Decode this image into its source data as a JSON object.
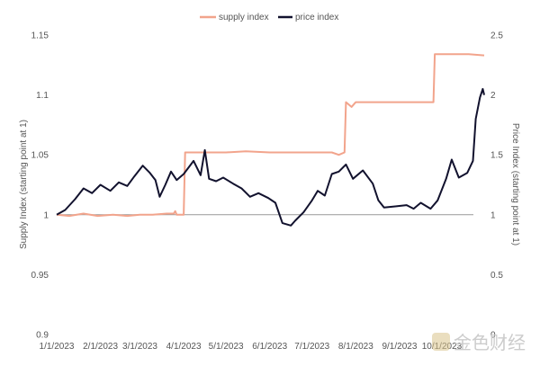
{
  "chart_data": {
    "type": "line",
    "title": "",
    "legend": {
      "placement": "top-center",
      "items": [
        {
          "label": "supply index",
          "color": "#F2A48C"
        },
        {
          "label": "price index",
          "color": "#12122E"
        }
      ]
    },
    "x_axis": {
      "tick_labels": [
        "1/1/2023",
        "2/1/2023",
        "3/1/2023",
        "4/1/2023",
        "5/1/2023",
        "6/1/2023",
        "7/1/2023",
        "8/1/2023",
        "9/1/2023",
        "10/1/2023"
      ],
      "range": [
        "2023-01-01",
        "2023-10-31"
      ]
    },
    "y_left": {
      "label": "Supply Index (starting point at 1)",
      "range": [
        0.9,
        1.15
      ],
      "tick_labels": [
        "0.9",
        "0.95",
        "1",
        "1.05",
        "1.1",
        "1.15"
      ],
      "tick_values": [
        0.9,
        0.95,
        1.0,
        1.05,
        1.1,
        1.15
      ]
    },
    "y_right": {
      "label": "Price Index (starting point at 1)",
      "range": [
        0,
        2.5
      ],
      "tick_labels": [
        "0",
        "0.5",
        "1",
        "1.5",
        "2",
        "2.5"
      ],
      "tick_values": [
        0,
        0.5,
        1.0,
        1.5,
        2.0,
        2.5
      ]
    },
    "reference_line": {
      "axis": "left",
      "value": 1.0,
      "color": "#999999"
    },
    "series": [
      {
        "name": "supply index",
        "axis": "left",
        "color": "#F2A48C",
        "points": [
          [
            "2023-01-01",
            1.0
          ],
          [
            "2023-01-10",
            0.999
          ],
          [
            "2023-01-20",
            1.001
          ],
          [
            "2023-01-30",
            0.999
          ],
          [
            "2023-02-10",
            1.0
          ],
          [
            "2023-02-20",
            0.999
          ],
          [
            "2023-03-01",
            1.0
          ],
          [
            "2023-03-10",
            1.0
          ],
          [
            "2023-03-20",
            1.001
          ],
          [
            "2023-03-25",
            1.001
          ],
          [
            "2023-03-26",
            1.003
          ],
          [
            "2023-03-27",
            1.0
          ],
          [
            "2023-04-01",
            1.0
          ],
          [
            "2023-04-02",
            1.052
          ],
          [
            "2023-04-15",
            1.052
          ],
          [
            "2023-05-01",
            1.052
          ],
          [
            "2023-05-15",
            1.053
          ],
          [
            "2023-06-01",
            1.052
          ],
          [
            "2023-06-15",
            1.052
          ],
          [
            "2023-07-01",
            1.052
          ],
          [
            "2023-07-15",
            1.052
          ],
          [
            "2023-07-20",
            1.05
          ],
          [
            "2023-07-24",
            1.052
          ],
          [
            "2023-07-25",
            1.094
          ],
          [
            "2023-07-29",
            1.09
          ],
          [
            "2023-08-01",
            1.094
          ],
          [
            "2023-08-15",
            1.094
          ],
          [
            "2023-09-01",
            1.094
          ],
          [
            "2023-09-15",
            1.094
          ],
          [
            "2023-09-25",
            1.094
          ],
          [
            "2023-09-26",
            1.134
          ],
          [
            "2023-10-10",
            1.134
          ],
          [
            "2023-10-20",
            1.134
          ],
          [
            "2023-10-31",
            1.133
          ]
        ]
      },
      {
        "name": "price index",
        "axis": "right",
        "color": "#12122E",
        "points": [
          [
            "2023-01-01",
            1.0
          ],
          [
            "2023-01-07",
            1.04
          ],
          [
            "2023-01-14",
            1.13
          ],
          [
            "2023-01-20",
            1.22
          ],
          [
            "2023-01-26",
            1.18
          ],
          [
            "2023-02-01",
            1.25
          ],
          [
            "2023-02-08",
            1.2
          ],
          [
            "2023-02-14",
            1.27
          ],
          [
            "2023-02-20",
            1.24
          ],
          [
            "2023-02-25",
            1.32
          ],
          [
            "2023-03-03",
            1.41
          ],
          [
            "2023-03-08",
            1.35
          ],
          [
            "2023-03-12",
            1.29
          ],
          [
            "2023-03-15",
            1.15
          ],
          [
            "2023-03-19",
            1.25
          ],
          [
            "2023-03-23",
            1.36
          ],
          [
            "2023-03-27",
            1.29
          ],
          [
            "2023-04-01",
            1.34
          ],
          [
            "2023-04-08",
            1.45
          ],
          [
            "2023-04-13",
            1.33
          ],
          [
            "2023-04-16",
            1.54
          ],
          [
            "2023-04-19",
            1.3
          ],
          [
            "2023-04-24",
            1.28
          ],
          [
            "2023-04-29",
            1.31
          ],
          [
            "2023-05-06",
            1.26
          ],
          [
            "2023-05-12",
            1.22
          ],
          [
            "2023-05-18",
            1.15
          ],
          [
            "2023-05-24",
            1.18
          ],
          [
            "2023-05-31",
            1.14
          ],
          [
            "2023-06-05",
            1.1
          ],
          [
            "2023-06-10",
            0.93
          ],
          [
            "2023-06-16",
            0.91
          ],
          [
            "2023-06-19",
            0.95
          ],
          [
            "2023-06-25",
            1.02
          ],
          [
            "2023-07-01",
            1.12
          ],
          [
            "2023-07-05",
            1.2
          ],
          [
            "2023-07-10",
            1.16
          ],
          [
            "2023-07-15",
            1.34
          ],
          [
            "2023-07-20",
            1.36
          ],
          [
            "2023-07-25",
            1.42
          ],
          [
            "2023-07-30",
            1.3
          ],
          [
            "2023-08-06",
            1.37
          ],
          [
            "2023-08-13",
            1.26
          ],
          [
            "2023-08-17",
            1.12
          ],
          [
            "2023-08-21",
            1.06
          ],
          [
            "2023-08-29",
            1.07
          ],
          [
            "2023-09-06",
            1.08
          ],
          [
            "2023-09-11",
            1.05
          ],
          [
            "2023-09-16",
            1.1
          ],
          [
            "2023-09-23",
            1.05
          ],
          [
            "2023-09-28",
            1.12
          ],
          [
            "2023-10-04",
            1.3
          ],
          [
            "2023-10-08",
            1.46
          ],
          [
            "2023-10-13",
            1.31
          ],
          [
            "2023-10-19",
            1.35
          ],
          [
            "2023-10-23",
            1.45
          ],
          [
            "2023-10-25",
            1.8
          ],
          [
            "2023-10-28",
            1.98
          ],
          [
            "2023-10-30",
            2.05
          ],
          [
            "2023-10-31",
            2.0
          ]
        ]
      }
    ]
  },
  "watermark": {
    "text": "金色财经"
  }
}
